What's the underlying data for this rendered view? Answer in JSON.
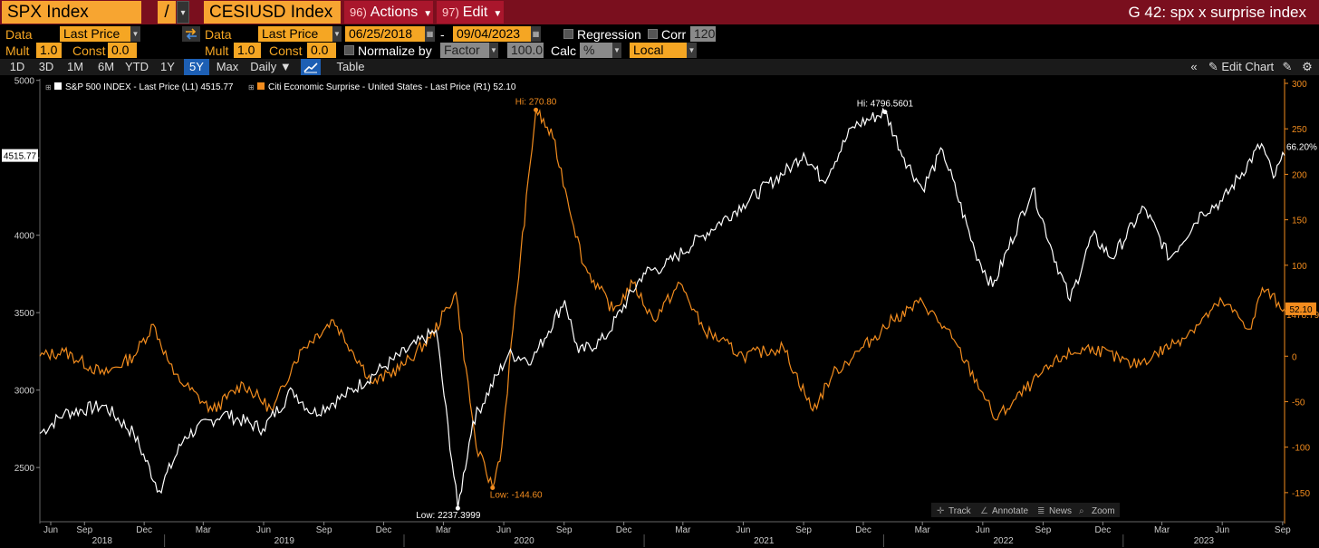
{
  "header": {
    "ticker1": "SPX Index",
    "ratio_symbol": "/",
    "ticker2": "CESIUSD Index",
    "actions": {
      "num": "96)",
      "label": "Actions"
    },
    "edit": {
      "num": "97)",
      "label": "Edit"
    },
    "graph_title": "G 42: spx x surprise index"
  },
  "settings": {
    "data_label": "Data",
    "data1_value": "Last Price",
    "data2_label": "Data",
    "data2_value": "Last Price",
    "start_date": "06/25/2018",
    "dash": "-",
    "end_date": "09/04/2023",
    "regression_label": "Regression",
    "corr_label": "Corr",
    "corr_value": "120",
    "mult_label": "Mult",
    "mult1_value": "1.0",
    "const_label": "Const",
    "const1_value": "0.0",
    "mult2_label": "Mult",
    "mult2_value": "1.0",
    "const2_label": "Const",
    "const2_value": "0.0",
    "normalize_label": "Normalize by",
    "normalize_value": "Factor",
    "normalize_factor": "100.0",
    "calc_label": "Calc",
    "calc_value": "%",
    "local_value": "Local"
  },
  "toolbar": {
    "ranges": [
      "1D",
      "3D",
      "1M",
      "6M",
      "YTD",
      "1Y",
      "5Y",
      "Max"
    ],
    "active_range": "5Y",
    "frequency": "Daily",
    "table_label": "Table",
    "edit_chart_label": "Edit Chart"
  },
  "overlay": {
    "track": "Track",
    "annotate": "Annotate",
    "news": "News",
    "zoom": "Zoom"
  },
  "colors": {
    "spx": "#ffffff",
    "cesi": "#f28c1e",
    "accent_orange": "#f5a623",
    "title_bar": "#7a0f1e",
    "active_tab": "#1d5fb4"
  },
  "chart_data": {
    "type": "line",
    "title": "",
    "legend_placement": "top-left",
    "x_axis": {
      "month_ticks": [
        "Jun",
        "Sep",
        "Dec",
        "Mar",
        "Jun",
        "Sep",
        "Dec",
        "Mar",
        "Jun",
        "Sep",
        "Dec",
        "Mar",
        "Jun",
        "Sep",
        "Dec",
        "Mar",
        "Jun",
        "Sep",
        "Dec",
        "Mar",
        "Jun",
        "Sep"
      ],
      "year_ticks": [
        "2018",
        "2019",
        "2020",
        "2021",
        "2022",
        "2023"
      ],
      "range": [
        "2018-06-25",
        "2023-09-04"
      ]
    },
    "y_left": {
      "ticks": [
        2500,
        3000,
        3500,
        4000,
        4500,
        5000
      ],
      "range": [
        2150,
        5010
      ]
    },
    "y_right": {
      "ticks": [
        -150,
        -100,
        -50,
        0,
        50,
        100,
        150,
        200,
        250,
        300
      ],
      "range": [
        -182,
        305
      ]
    },
    "series": [
      {
        "name": "S&P 500 INDEX - Last Price (L1) 4515.77",
        "axis": "left",
        "last_value": "4515.77",
        "change_label": "66.20%",
        "high_label": "Hi: 4796.5601",
        "low_label": "Low: 2237.3999",
        "x": [
          "2018-06-25",
          "2018-08-01",
          "2018-10-01",
          "2018-11-15",
          "2018-12-24",
          "2019-02-01",
          "2019-04-01",
          "2019-05-31",
          "2019-07-15",
          "2019-08-15",
          "2019-10-01",
          "2019-12-01",
          "2020-02-19",
          "2020-03-23",
          "2020-04-15",
          "2020-06-08",
          "2020-07-15",
          "2020-09-02",
          "2020-09-23",
          "2020-11-01",
          "2020-12-31",
          "2021-02-01",
          "2021-04-01",
          "2021-06-01",
          "2021-08-15",
          "2021-09-01",
          "2021-10-01",
          "2021-11-15",
          "2022-01-03",
          "2022-02-01",
          "2022-03-01",
          "2022-04-01",
          "2022-05-20",
          "2022-06-16",
          "2022-08-16",
          "2022-09-15",
          "2022-10-12",
          "2022-11-15",
          "2022-12-15",
          "2023-02-02",
          "2023-03-13",
          "2023-05-01",
          "2023-06-01",
          "2023-07-31",
          "2023-08-18",
          "2023-09-04"
        ],
        "values": [
          2720,
          2850,
          2900,
          2720,
          2351,
          2700,
          2850,
          2750,
          3000,
          2850,
          2960,
          3150,
          3386,
          2237,
          2800,
          3230,
          3200,
          3580,
          3240,
          3330,
          3756,
          3800,
          4000,
          4200,
          4450,
          4530,
          4350,
          4700,
          4796,
          4500,
          4300,
          4550,
          3900,
          3667,
          4300,
          3900,
          3577,
          4000,
          3850,
          4180,
          3850,
          4150,
          4220,
          4590,
          4370,
          4515
        ]
      },
      {
        "name": "Citi Economic Surprise - United States - Last Price (R1) 52.10",
        "axis": "right",
        "last_value": "52.10",
        "change_label": "1478.79%",
        "high_label": "Hi: 270.80",
        "low_label": "Low: -144.60",
        "x": [
          "2018-06-25",
          "2018-08-01",
          "2018-10-01",
          "2018-11-15",
          "2018-12-15",
          "2019-01-15",
          "2019-03-15",
          "2019-05-01",
          "2019-06-15",
          "2019-07-15",
          "2019-08-01",
          "2019-09-15",
          "2019-11-15",
          "2019-12-31",
          "2020-02-10",
          "2020-03-20",
          "2020-04-20",
          "2020-05-15",
          "2020-05-29",
          "2020-06-15",
          "2020-07-20",
          "2020-08-15",
          "2020-10-01",
          "2020-11-15",
          "2020-12-15",
          "2021-01-15",
          "2021-02-25",
          "2021-04-01",
          "2021-06-01",
          "2021-08-01",
          "2021-09-15",
          "2021-10-15",
          "2021-12-01",
          "2022-01-15",
          "2022-03-01",
          "2022-04-15",
          "2022-06-01",
          "2022-06-20",
          "2022-08-15",
          "2022-10-01",
          "2022-11-15",
          "2023-01-15",
          "2023-02-15",
          "2023-04-01",
          "2023-06-01",
          "2023-07-15",
          "2023-08-01",
          "2023-09-04"
        ],
        "values": [
          0,
          5,
          -20,
          0,
          35,
          -20,
          -60,
          -30,
          -60,
          -10,
          10,
          40,
          -30,
          -10,
          20,
          70,
          -100,
          -144.6,
          -100,
          30,
          270.8,
          240,
          100,
          50,
          80,
          40,
          80,
          30,
          0,
          10,
          -60,
          -20,
          10,
          40,
          60,
          20,
          -40,
          -70,
          -30,
          0,
          10,
          -10,
          0,
          20,
          60,
          30,
          75,
          52.1
        ]
      }
    ]
  }
}
